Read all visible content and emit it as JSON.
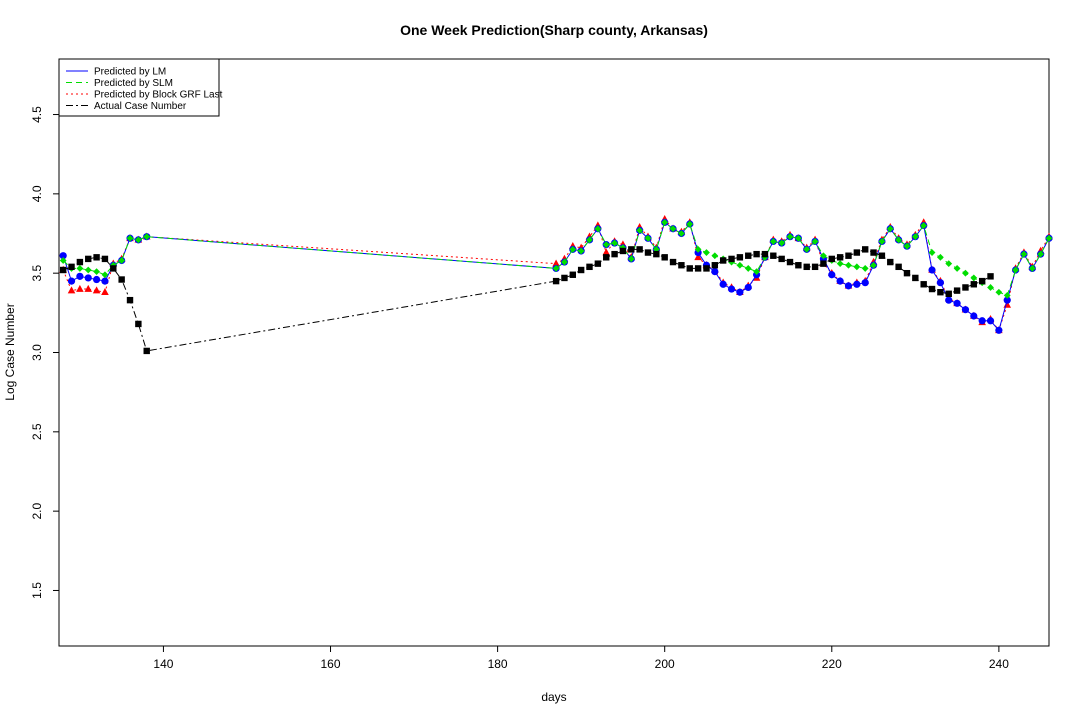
{
  "chart_data": {
    "type": "line",
    "title": "One Week Prediction(Sharp county, Arkansas)",
    "xlabel": "days",
    "ylabel": "Log Case Number",
    "xlim": [
      127.5,
      246
    ],
    "ylim": [
      1.15,
      4.85
    ],
    "x_ticks": [
      {
        "value": 140,
        "label": "140"
      },
      {
        "value": 160,
        "label": "160"
      },
      {
        "value": 180,
        "label": "180"
      },
      {
        "value": 200,
        "label": "200"
      },
      {
        "value": 220,
        "label": "220"
      },
      {
        "value": 240,
        "label": "240"
      }
    ],
    "y_ticks": [
      {
        "value": 1.5,
        "label": "1.5"
      },
      {
        "value": 2.0,
        "label": "2.0"
      },
      {
        "value": 2.5,
        "label": "2.5"
      },
      {
        "value": 3.0,
        "label": "3.0"
      },
      {
        "value": 3.5,
        "label": "3.5"
      },
      {
        "value": 4.0,
        "label": "4.0"
      },
      {
        "value": 4.5,
        "label": "4.5"
      }
    ],
    "legend_position": "top-left",
    "x": [
      128,
      129,
      130,
      131,
      132,
      133,
      134,
      135,
      136,
      137,
      138,
      187,
      188,
      189,
      190,
      191,
      192,
      193,
      194,
      195,
      196,
      197,
      198,
      199,
      200,
      201,
      202,
      203,
      204,
      205,
      206,
      207,
      208,
      209,
      210,
      211,
      212,
      213,
      214,
      215,
      216,
      217,
      218,
      219,
      220,
      221,
      222,
      223,
      224,
      225,
      226,
      227,
      228,
      229,
      230,
      231,
      232,
      233,
      234,
      235,
      236,
      237,
      238,
      239,
      240,
      241,
      242,
      243,
      244,
      245,
      246
    ],
    "series": [
      {
        "name": "Predicted by LM",
        "color": "#0000ff",
        "marker": "circle",
        "line_style": "solid",
        "values": [
          3.61,
          3.45,
          3.48,
          3.47,
          3.46,
          3.45,
          3.55,
          3.58,
          3.72,
          3.71,
          3.73,
          3.53,
          3.57,
          3.65,
          3.64,
          3.71,
          3.78,
          3.68,
          3.69,
          3.66,
          3.59,
          3.77,
          3.72,
          3.65,
          3.82,
          3.78,
          3.75,
          3.81,
          3.63,
          3.55,
          3.51,
          3.43,
          3.4,
          3.38,
          3.41,
          3.49,
          3.6,
          3.7,
          3.69,
          3.73,
          3.72,
          3.65,
          3.7,
          3.59,
          3.49,
          3.45,
          3.42,
          3.43,
          3.44,
          3.55,
          3.7,
          3.78,
          3.71,
          3.67,
          3.73,
          3.8,
          3.52,
          3.44,
          3.33,
          3.31,
          3.27,
          3.23,
          3.2,
          3.2,
          3.14,
          3.33,
          3.52,
          3.62,
          3.53,
          3.62,
          3.72
        ]
      },
      {
        "name": "Predicted by SLM",
        "color": "#00dd00",
        "marker": "diamond",
        "line_style": "dashed",
        "values": [
          3.58,
          3.53,
          3.53,
          3.52,
          3.51,
          3.49,
          3.55,
          3.58,
          3.72,
          3.71,
          3.73,
          3.53,
          3.57,
          3.65,
          3.64,
          3.71,
          3.78,
          3.68,
          3.69,
          3.66,
          3.59,
          3.77,
          3.72,
          3.65,
          3.82,
          3.78,
          3.75,
          3.81,
          3.65,
          3.63,
          3.61,
          3.59,
          3.57,
          3.55,
          3.53,
          3.51,
          3.6,
          3.7,
          3.69,
          3.73,
          3.72,
          3.65,
          3.7,
          3.61,
          3.58,
          3.56,
          3.55,
          3.54,
          3.53,
          3.55,
          3.7,
          3.78,
          3.71,
          3.67,
          3.73,
          3.8,
          3.63,
          3.6,
          3.56,
          3.53,
          3.5,
          3.47,
          3.44,
          3.41,
          3.38,
          3.36,
          3.52,
          3.62,
          3.53,
          3.62,
          3.72
        ]
      },
      {
        "name": "Predicted by Block GRF Last",
        "color": "#ff0000",
        "marker": "triangle",
        "line_style": "dotted",
        "values": [
          3.52,
          3.39,
          3.4,
          3.4,
          3.39,
          3.38,
          3.56,
          3.59,
          3.72,
          3.71,
          3.73,
          3.56,
          3.59,
          3.67,
          3.66,
          3.73,
          3.8,
          3.63,
          3.7,
          3.68,
          3.6,
          3.79,
          3.73,
          3.66,
          3.84,
          3.78,
          3.76,
          3.82,
          3.6,
          3.55,
          3.52,
          3.44,
          3.41,
          3.38,
          3.42,
          3.47,
          3.6,
          3.71,
          3.7,
          3.74,
          3.72,
          3.66,
          3.71,
          3.56,
          3.5,
          3.45,
          3.42,
          3.44,
          3.45,
          3.57,
          3.71,
          3.79,
          3.72,
          3.68,
          3.74,
          3.82,
          3.52,
          3.45,
          3.34,
          3.31,
          3.27,
          3.23,
          3.19,
          3.21,
          3.14,
          3.3,
          3.53,
          3.63,
          3.54,
          3.64,
          3.73
        ]
      },
      {
        "name": "Actual Case Number",
        "color": "#000000",
        "marker": "square",
        "line_style": "dotdash",
        "values": [
          3.52,
          3.54,
          3.57,
          3.59,
          3.6,
          3.59,
          3.53,
          3.46,
          3.33,
          3.18,
          3.01,
          3.45,
          3.47,
          3.49,
          3.52,
          3.54,
          3.56,
          3.6,
          3.62,
          3.64,
          3.65,
          3.65,
          3.63,
          3.62,
          3.6,
          3.57,
          3.55,
          3.53,
          3.53,
          3.53,
          3.55,
          3.58,
          3.59,
          3.6,
          3.61,
          3.62,
          3.62,
          3.61,
          3.59,
          3.57,
          3.55,
          3.54,
          3.54,
          3.56,
          3.59,
          3.6,
          3.61,
          3.63,
          3.65,
          3.63,
          3.61,
          3.57,
          3.54,
          3.5,
          3.47,
          3.43,
          3.4,
          3.38,
          3.37,
          3.39,
          3.41,
          3.43,
          3.45,
          3.48,
          null,
          null,
          null,
          null,
          null,
          null,
          null
        ]
      }
    ]
  }
}
